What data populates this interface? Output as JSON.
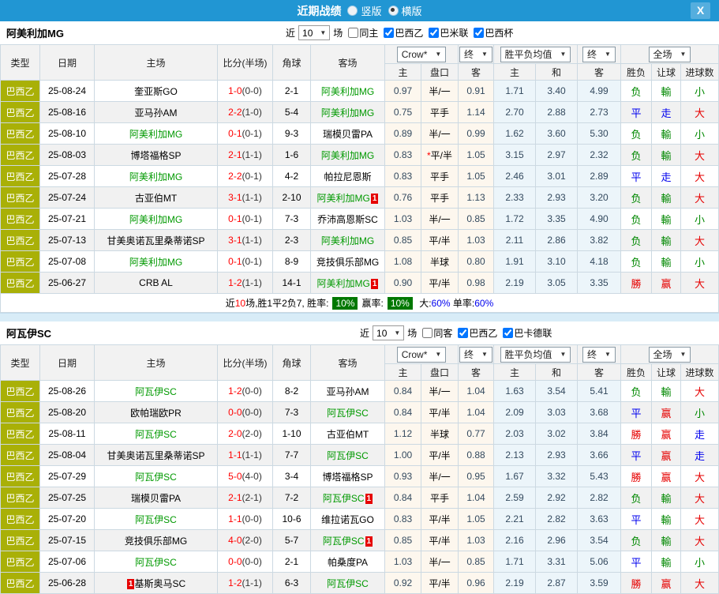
{
  "titlebar": {
    "title": "近期战绩",
    "radio_vertical": "竖版",
    "radio_horizontal": "横版",
    "selected": "横版",
    "close_label": "X",
    "bar_color": "#2196d3"
  },
  "table_header": {
    "type": "类型",
    "date": "日期",
    "home": "主场",
    "score": "比分(半场)",
    "corner": "角球",
    "away": "客场",
    "crow_select": "Crow*",
    "final_select_1": "终",
    "europe_select": "胜平负均值",
    "final_select_2": "终",
    "scope_select": "全场",
    "h": "主",
    "handicap": "盘口",
    "a": "客",
    "eh": "主",
    "ed": "和",
    "ea": "客",
    "result": "胜负",
    "handicap_result": "让球",
    "goals": "进球数"
  },
  "colors": {
    "league_badge": "#a9b007",
    "team_highlight": "#009900",
    "win": "#e60000",
    "draw": "#0000ee",
    "lose": "#008800",
    "crow_col_bg": "#fdf7ee",
    "euro_col_bg": "#ecf5fa"
  },
  "sections": [
    {
      "team": "阿美利加MG",
      "filter": {
        "near_label": "近",
        "count": "10",
        "unit_label": "场",
        "same_label": "同主",
        "same_checked": false,
        "leagues": [
          {
            "label": "巴西乙",
            "checked": true
          },
          {
            "label": "巴米联",
            "checked": true
          },
          {
            "label": "巴西杯",
            "checked": true
          }
        ]
      },
      "rows": [
        {
          "lg": "巴西乙",
          "date": "25-08-24",
          "home": {
            "name": "奎亚斯GO"
          },
          "ft": "1-0",
          "ht": "(0-0)",
          "corner": "2-1",
          "away": {
            "name": "阿美利加MG",
            "green": true
          },
          "crow": [
            "0.97",
            "半/一",
            "0.91"
          ],
          "star": false,
          "euro": [
            "1.71",
            "3.40",
            "4.99"
          ],
          "res": [
            "负",
            "green"
          ],
          "let": [
            "輸",
            "green"
          ],
          "goal": [
            "小",
            "green"
          ]
        },
        {
          "lg": "巴西乙",
          "date": "25-08-16",
          "home": {
            "name": "亚马孙AM"
          },
          "ft": "2-2",
          "ht": "(1-0)",
          "corner": "5-4",
          "away": {
            "name": "阿美利加MG",
            "green": true
          },
          "crow": [
            "0.75",
            "平手",
            "1.14"
          ],
          "star": false,
          "euro": [
            "2.70",
            "2.88",
            "2.73"
          ],
          "res": [
            "平",
            "blue"
          ],
          "let": [
            "走",
            "blue"
          ],
          "goal": [
            "大",
            "red"
          ]
        },
        {
          "lg": "巴西乙",
          "date": "25-08-10",
          "home": {
            "name": "阿美利加MG",
            "green": true
          },
          "ft": "0-1",
          "ht": "(0-1)",
          "corner": "9-3",
          "away": {
            "name": "瑞模贝雷PA"
          },
          "crow": [
            "0.89",
            "半/一",
            "0.99"
          ],
          "star": false,
          "euro": [
            "1.62",
            "3.60",
            "5.30"
          ],
          "res": [
            "负",
            "green"
          ],
          "let": [
            "輸",
            "green"
          ],
          "goal": [
            "小",
            "green"
          ]
        },
        {
          "lg": "巴西乙",
          "date": "25-08-03",
          "home": {
            "name": "博塔福格SP"
          },
          "ft": "2-1",
          "ht": "(1-1)",
          "corner": "1-6",
          "away": {
            "name": "阿美利加MG",
            "green": true
          },
          "crow": [
            "0.83",
            "平/半",
            "1.05"
          ],
          "star": true,
          "euro": [
            "3.15",
            "2.97",
            "2.32"
          ],
          "res": [
            "负",
            "green"
          ],
          "let": [
            "輸",
            "green"
          ],
          "goal": [
            "大",
            "red"
          ]
        },
        {
          "lg": "巴西乙",
          "date": "25-07-28",
          "home": {
            "name": "阿美利加MG",
            "green": true
          },
          "ft": "2-2",
          "ht": "(0-1)",
          "corner": "4-2",
          "away": {
            "name": "帕拉尼恩斯"
          },
          "crow": [
            "0.83",
            "平手",
            "1.05"
          ],
          "star": false,
          "euro": [
            "2.46",
            "3.01",
            "2.89"
          ],
          "res": [
            "平",
            "blue"
          ],
          "let": [
            "走",
            "blue"
          ],
          "goal": [
            "大",
            "red"
          ]
        },
        {
          "lg": "巴西乙",
          "date": "25-07-24",
          "home": {
            "name": "古亚伯MT"
          },
          "ft": "3-1",
          "ht": "(1-1)",
          "corner": "2-10",
          "away": {
            "name": "阿美利加MG",
            "green": true,
            "badge": "1"
          },
          "crow": [
            "0.76",
            "平手",
            "1.13"
          ],
          "star": false,
          "euro": [
            "2.33",
            "2.93",
            "3.20"
          ],
          "res": [
            "负",
            "green"
          ],
          "let": [
            "輸",
            "green"
          ],
          "goal": [
            "大",
            "red"
          ]
        },
        {
          "lg": "巴西乙",
          "date": "25-07-21",
          "home": {
            "name": "阿美利加MG",
            "green": true
          },
          "ft": "0-1",
          "ht": "(0-1)",
          "corner": "7-3",
          "away": {
            "name": "乔沛高恩斯SC"
          },
          "crow": [
            "1.03",
            "半/一",
            "0.85"
          ],
          "star": false,
          "euro": [
            "1.72",
            "3.35",
            "4.90"
          ],
          "res": [
            "负",
            "green"
          ],
          "let": [
            "輸",
            "green"
          ],
          "goal": [
            "小",
            "green"
          ]
        },
        {
          "lg": "巴西乙",
          "date": "25-07-13",
          "home": {
            "name": "甘美奥诺瓦里桑蒂诺SP"
          },
          "ft": "3-1",
          "ht": "(1-1)",
          "corner": "2-3",
          "away": {
            "name": "阿美利加MG",
            "green": true
          },
          "crow": [
            "0.85",
            "平/半",
            "1.03"
          ],
          "star": false,
          "euro": [
            "2.11",
            "2.86",
            "3.82"
          ],
          "res": [
            "负",
            "green"
          ],
          "let": [
            "輸",
            "green"
          ],
          "goal": [
            "大",
            "red"
          ]
        },
        {
          "lg": "巴西乙",
          "date": "25-07-08",
          "home": {
            "name": "阿美利加MG",
            "green": true
          },
          "ft": "0-1",
          "ht": "(0-1)",
          "corner": "8-9",
          "away": {
            "name": "竞技俱乐部MG"
          },
          "crow": [
            "1.08",
            "半球",
            "0.80"
          ],
          "star": false,
          "euro": [
            "1.91",
            "3.10",
            "4.18"
          ],
          "res": [
            "负",
            "green"
          ],
          "let": [
            "輸",
            "green"
          ],
          "goal": [
            "小",
            "green"
          ]
        },
        {
          "lg": "巴西乙",
          "date": "25-06-27",
          "home": {
            "name": "CRB AL"
          },
          "ft": "1-2",
          "ht": "(1-1)",
          "corner": "14-1",
          "away": {
            "name": "阿美利加MG",
            "green": true,
            "badge": "1"
          },
          "crow": [
            "0.90",
            "平/半",
            "0.98"
          ],
          "star": false,
          "euro": [
            "2.19",
            "3.05",
            "3.35"
          ],
          "res": [
            "勝",
            "red"
          ],
          "let": [
            "赢",
            "red"
          ],
          "goal": [
            "大",
            "red"
          ]
        }
      ],
      "summary": {
        "t1": "近",
        "t2": "10",
        "t3": "场,胜1平2负7, 胜率:",
        "p1": "10%",
        "t4": "赢率:",
        "p2": "10%",
        "t5": "大:",
        "v1": "60%",
        "t6": "单率:",
        "v2": "60%"
      }
    },
    {
      "team": "阿瓦伊SC",
      "filter": {
        "near_label": "近",
        "count": "10",
        "unit_label": "场",
        "same_label": "同客",
        "same_checked": false,
        "leagues": [
          {
            "label": "巴西乙",
            "checked": true
          },
          {
            "label": "巴卡德联",
            "checked": true
          }
        ]
      },
      "rows": [
        {
          "lg": "巴西乙",
          "date": "25-08-26",
          "home": {
            "name": "阿瓦伊SC",
            "green": true
          },
          "ft": "1-2",
          "ht": "(0-0)",
          "corner": "8-2",
          "away": {
            "name": "亚马孙AM"
          },
          "crow": [
            "0.84",
            "半/一",
            "1.04"
          ],
          "star": false,
          "euro": [
            "1.63",
            "3.54",
            "5.41"
          ],
          "res": [
            "负",
            "green"
          ],
          "let": [
            "輸",
            "green"
          ],
          "goal": [
            "大",
            "red"
          ]
        },
        {
          "lg": "巴西乙",
          "date": "25-08-20",
          "home": {
            "name": "欧帕瑞欧PR"
          },
          "ft": "0-0",
          "ht": "(0-0)",
          "corner": "7-3",
          "away": {
            "name": "阿瓦伊SC",
            "green": true
          },
          "crow": [
            "0.84",
            "平/半",
            "1.04"
          ],
          "star": false,
          "euro": [
            "2.09",
            "3.03",
            "3.68"
          ],
          "res": [
            "平",
            "blue"
          ],
          "let": [
            "赢",
            "red"
          ],
          "goal": [
            "小",
            "green"
          ]
        },
        {
          "lg": "巴西乙",
          "date": "25-08-11",
          "home": {
            "name": "阿瓦伊SC",
            "green": true
          },
          "ft": "2-0",
          "ht": "(2-0)",
          "corner": "1-10",
          "away": {
            "name": "古亚伯MT"
          },
          "crow": [
            "1.12",
            "半球",
            "0.77"
          ],
          "star": false,
          "euro": [
            "2.03",
            "3.02",
            "3.84"
          ],
          "res": [
            "勝",
            "red"
          ],
          "let": [
            "赢",
            "red"
          ],
          "goal": [
            "走",
            "blue"
          ]
        },
        {
          "lg": "巴西乙",
          "date": "25-08-04",
          "home": {
            "name": "甘美奥诺瓦里桑蒂诺SP"
          },
          "ft": "1-1",
          "ht": "(1-1)",
          "corner": "7-7",
          "away": {
            "name": "阿瓦伊SC",
            "green": true
          },
          "crow": [
            "1.00",
            "平/半",
            "0.88"
          ],
          "star": false,
          "euro": [
            "2.13",
            "2.93",
            "3.66"
          ],
          "res": [
            "平",
            "blue"
          ],
          "let": [
            "赢",
            "red"
          ],
          "goal": [
            "走",
            "blue"
          ]
        },
        {
          "lg": "巴西乙",
          "date": "25-07-29",
          "home": {
            "name": "阿瓦伊SC",
            "green": true
          },
          "ft": "5-0",
          "ht": "(4-0)",
          "corner": "3-4",
          "away": {
            "name": "博塔福格SP"
          },
          "crow": [
            "0.93",
            "半/一",
            "0.95"
          ],
          "star": false,
          "euro": [
            "1.67",
            "3.32",
            "5.43"
          ],
          "res": [
            "勝",
            "red"
          ],
          "let": [
            "赢",
            "red"
          ],
          "goal": [
            "大",
            "red"
          ]
        },
        {
          "lg": "巴西乙",
          "date": "25-07-25",
          "home": {
            "name": "瑞模贝雷PA"
          },
          "ft": "2-1",
          "ht": "(2-1)",
          "corner": "7-2",
          "away": {
            "name": "阿瓦伊SC",
            "green": true,
            "badge": "1"
          },
          "crow": [
            "0.84",
            "平手",
            "1.04"
          ],
          "star": false,
          "euro": [
            "2.59",
            "2.92",
            "2.82"
          ],
          "res": [
            "负",
            "green"
          ],
          "let": [
            "輸",
            "green"
          ],
          "goal": [
            "大",
            "red"
          ]
        },
        {
          "lg": "巴西乙",
          "date": "25-07-20",
          "home": {
            "name": "阿瓦伊SC",
            "green": true
          },
          "ft": "1-1",
          "ht": "(0-0)",
          "corner": "10-6",
          "away": {
            "name": "维拉诺瓦GO"
          },
          "crow": [
            "0.83",
            "平/半",
            "1.05"
          ],
          "star": false,
          "euro": [
            "2.21",
            "2.82",
            "3.63"
          ],
          "res": [
            "平",
            "blue"
          ],
          "let": [
            "輸",
            "green"
          ],
          "goal": [
            "大",
            "red"
          ]
        },
        {
          "lg": "巴西乙",
          "date": "25-07-15",
          "home": {
            "name": "竞技俱乐部MG"
          },
          "ft": "4-0",
          "ht": "(2-0)",
          "corner": "5-7",
          "away": {
            "name": "阿瓦伊SC",
            "green": true,
            "badge": "1"
          },
          "crow": [
            "0.85",
            "平/半",
            "1.03"
          ],
          "star": false,
          "euro": [
            "2.16",
            "2.96",
            "3.54"
          ],
          "res": [
            "负",
            "green"
          ],
          "let": [
            "輸",
            "green"
          ],
          "goal": [
            "大",
            "red"
          ]
        },
        {
          "lg": "巴西乙",
          "date": "25-07-06",
          "home": {
            "name": "阿瓦伊SC",
            "green": true
          },
          "ft": "0-0",
          "ht": "(0-0)",
          "corner": "2-1",
          "away": {
            "name": "帕桑度PA"
          },
          "crow": [
            "1.03",
            "半/一",
            "0.85"
          ],
          "star": false,
          "euro": [
            "1.71",
            "3.31",
            "5.06"
          ],
          "res": [
            "平",
            "blue"
          ],
          "let": [
            "輸",
            "green"
          ],
          "goal": [
            "小",
            "green"
          ]
        },
        {
          "lg": "巴西乙",
          "date": "25-06-28",
          "home": {
            "name": "基斯奥马SC",
            "badge": "1",
            "badgeBefore": true
          },
          "ft": "1-2",
          "ht": "(1-1)",
          "corner": "6-3",
          "away": {
            "name": "阿瓦伊SC",
            "green": true
          },
          "crow": [
            "0.92",
            "平/半",
            "0.96"
          ],
          "star": false,
          "euro": [
            "2.19",
            "2.87",
            "3.59"
          ],
          "res": [
            "勝",
            "red"
          ],
          "let": [
            "赢",
            "red"
          ],
          "goal": [
            "大",
            "red"
          ]
        }
      ]
    }
  ]
}
